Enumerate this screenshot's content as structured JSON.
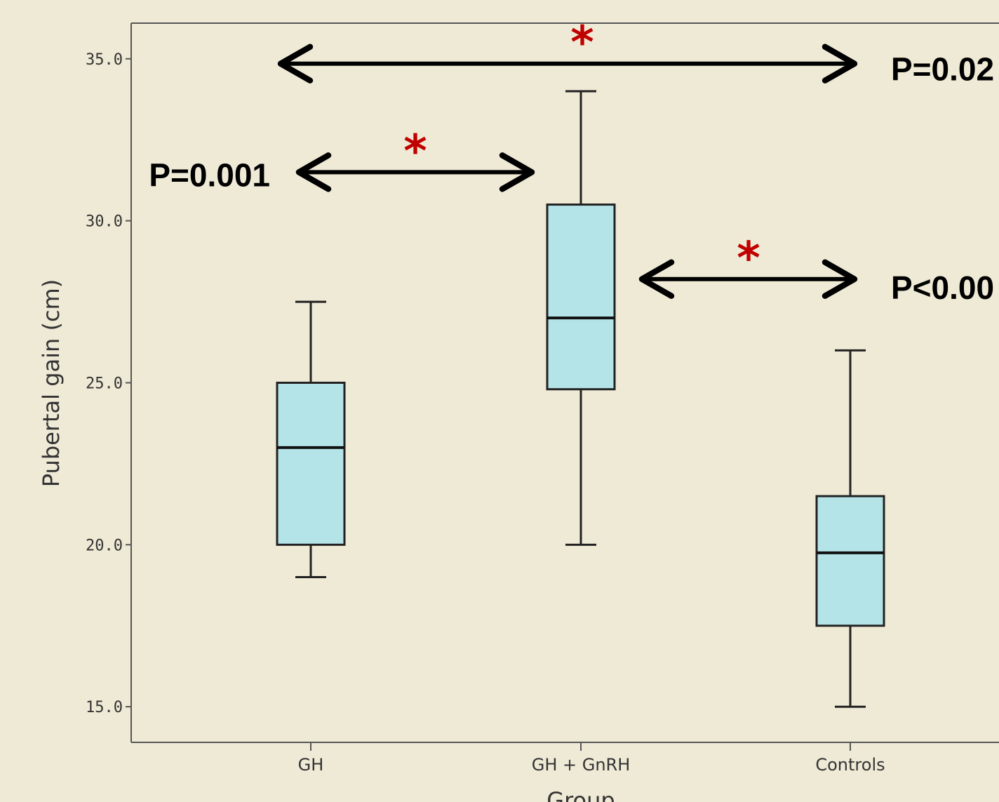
{
  "chart_data": {
    "type": "box",
    "xlabel": "Group",
    "ylabel": "Pubertal gain (cm)",
    "ylim": [
      13.9,
      36.1
    ],
    "yticks": [
      {
        "value": 15,
        "label": "15.0"
      },
      {
        "value": 20,
        "label": "20.0"
      },
      {
        "value": 25,
        "label": "25.0"
      },
      {
        "value": 30,
        "label": "30.0"
      },
      {
        "value": 35,
        "label": "35.0"
      }
    ],
    "categories": [
      "GH",
      "GH + GnRH",
      "Controls"
    ],
    "boxes": [
      {
        "category": "GH",
        "min": 19.0,
        "q1": 20.0,
        "median": 23.0,
        "q3": 25.0,
        "max": 27.5
      },
      {
        "category": "GH + GnRH",
        "min": 20.0,
        "q1": 24.8,
        "median": 27.0,
        "q3": 30.5,
        "max": 34.0
      },
      {
        "category": "Controls",
        "min": 15.0,
        "q1": 17.5,
        "median": 19.75,
        "q3": 21.5,
        "max": 26.0
      }
    ],
    "box_color": "#b5e4e8",
    "grid": false,
    "annotations": [
      {
        "from": "GH",
        "to": "Controls",
        "y": 34.85,
        "label": "P=0.02",
        "marker": "*"
      },
      {
        "from": "GH",
        "to": "GH + GnRH",
        "y": 31.5,
        "label": "P=0.001",
        "marker": "*"
      },
      {
        "from": "GH + GnRH",
        "to": "Controls",
        "y": 28.2,
        "label": "P<0.00",
        "marker": "*"
      }
    ]
  }
}
